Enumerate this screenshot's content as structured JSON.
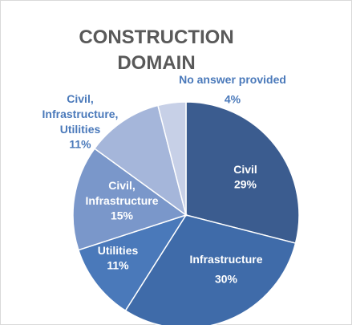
{
  "chart_data": {
    "type": "pie",
    "title": "CONSTRUCTION DOMAIN",
    "categories": [
      "Civil",
      "Infrastructure",
      "Utilities",
      "Civil, Infrastructure",
      "Civil, Infrastructure, Utilities",
      "No answer provided"
    ],
    "values": [
      29,
      30,
      11,
      15,
      11,
      4
    ],
    "value_labels": [
      "29%",
      "30%",
      "11%",
      "15%",
      "11%",
      "4%"
    ],
    "colors": [
      "#3b5c8f",
      "#3f6ba9",
      "#4a79ba",
      "#7a97ca",
      "#a5b6da",
      "#c7d0e7"
    ]
  }
}
